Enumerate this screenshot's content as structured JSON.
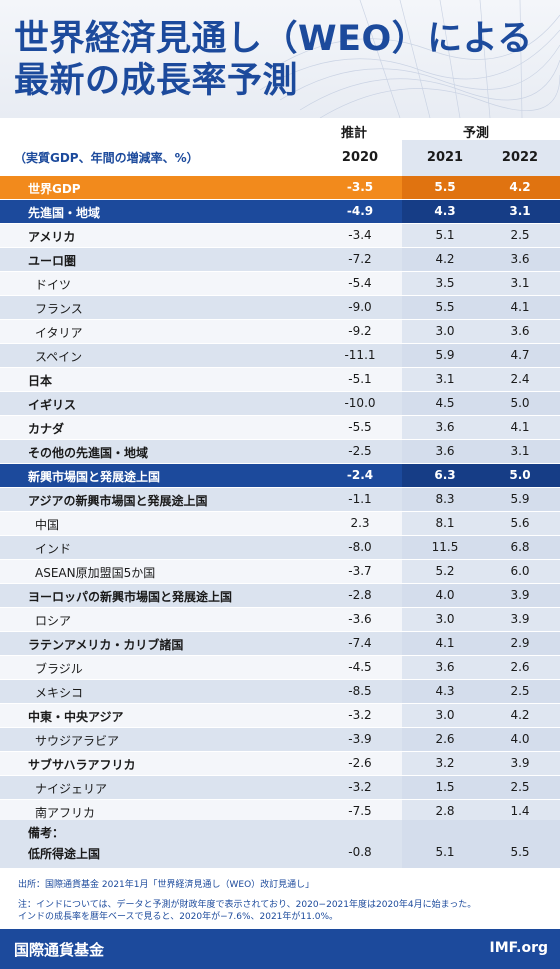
{
  "title_line1": "世界経済見通し（WEO）による",
  "title_line2": "最新の成長率予測",
  "header_estimate": "推計",
  "header_forecast": "予測",
  "subtitle": "（実質GDP、年間の増減率、%）",
  "years": [
    "2020",
    "2021",
    "2022"
  ],
  "chart_data": {
    "type": "table",
    "columns": [
      "2020",
      "2021",
      "2022"
    ],
    "rows": [
      {
        "name": "世界GDP",
        "values": [
          "-3.5",
          "5.5",
          "4.2"
        ],
        "style": "world"
      },
      {
        "name": "先進国・地域",
        "values": [
          "-4.9",
          "4.3",
          "3.1"
        ],
        "style": "group"
      },
      {
        "name": "アメリカ",
        "values": [
          "-3.4",
          "5.1",
          "2.5"
        ],
        "style": "bold"
      },
      {
        "name": "ユーロ圏",
        "values": [
          "-7.2",
          "4.2",
          "3.6"
        ],
        "style": "bold"
      },
      {
        "name": "ドイツ",
        "values": [
          "-5.4",
          "3.5",
          "3.1"
        ],
        "style": "indent"
      },
      {
        "name": "フランス",
        "values": [
          "-9.0",
          "5.5",
          "4.1"
        ],
        "style": "indent"
      },
      {
        "name": "イタリア",
        "values": [
          "-9.2",
          "3.0",
          "3.6"
        ],
        "style": "indent"
      },
      {
        "name": "スペイン",
        "values": [
          "-11.1",
          "5.9",
          "4.7"
        ],
        "style": "indent"
      },
      {
        "name": "日本",
        "values": [
          "-5.1",
          "3.1",
          "2.4"
        ],
        "style": "bold"
      },
      {
        "name": "イギリス",
        "values": [
          "-10.0",
          "4.5",
          "5.0"
        ],
        "style": "bold"
      },
      {
        "name": "カナダ",
        "values": [
          "-5.5",
          "3.6",
          "4.1"
        ],
        "style": "bold"
      },
      {
        "name": "その他の先進国・地域",
        "values": [
          "-2.5",
          "3.6",
          "3.1"
        ],
        "style": "bold"
      },
      {
        "name": "新興市場国と発展途上国",
        "values": [
          "-2.4",
          "6.3",
          "5.0"
        ],
        "style": "group"
      },
      {
        "name": "アジアの新興市場国と発展途上国",
        "values": [
          "-1.1",
          "8.3",
          "5.9"
        ],
        "style": "bold"
      },
      {
        "name": "中国",
        "values": [
          "2.3",
          "8.1",
          "5.6"
        ],
        "style": "indent"
      },
      {
        "name": "インド",
        "values": [
          "-8.0",
          "11.5",
          "6.8"
        ],
        "style": "indent"
      },
      {
        "name": "ASEAN原加盟国5か国",
        "values": [
          "-3.7",
          "5.2",
          "6.0"
        ],
        "style": "indent"
      },
      {
        "name": "ヨーロッパの新興市場国と発展途上国",
        "values": [
          "-2.8",
          "4.0",
          "3.9"
        ],
        "style": "bold"
      },
      {
        "name": "ロシア",
        "values": [
          "-3.6",
          "3.0",
          "3.9"
        ],
        "style": "indent"
      },
      {
        "name": "ラテンアメリカ・カリブ諸国",
        "values": [
          "-7.4",
          "4.1",
          "2.9"
        ],
        "style": "bold"
      },
      {
        "name": "ブラジル",
        "values": [
          "-4.5",
          "3.6",
          "2.6"
        ],
        "style": "indent"
      },
      {
        "name": "メキシコ",
        "values": [
          "-8.5",
          "4.3",
          "2.5"
        ],
        "style": "indent"
      },
      {
        "name": "中東・中央アジア",
        "values": [
          "-3.2",
          "3.0",
          "4.2"
        ],
        "style": "bold"
      },
      {
        "name": "サウジアラビア",
        "values": [
          "-3.9",
          "2.6",
          "4.0"
        ],
        "style": "indent"
      },
      {
        "name": "サブサハラアフリカ",
        "values": [
          "-2.6",
          "3.2",
          "3.9"
        ],
        "style": "bold"
      },
      {
        "name": "ナイジェリア",
        "values": [
          "-3.2",
          "1.5",
          "2.5"
        ],
        "style": "indent"
      },
      {
        "name": "南アフリカ",
        "values": [
          "-7.5",
          "2.8",
          "1.4"
        ],
        "style": "indent"
      }
    ],
    "memo": {
      "label": "備考：",
      "name": "低所得途上国",
      "values": [
        "-0.8",
        "5.1",
        "5.5"
      ]
    }
  },
  "source": "出所：国際通貨基金 2021年1月「世界経済見通し（WEO）改訂見通し」",
  "note_line1": "注：インドについては、データと予測が財政年度で表示されており、2020−2021年度は2020年4月に始まった。",
  "note_line2": "インドの成長率を暦年ベースで見ると、2020年が−7.6%、2021年が11.0%。",
  "footer_org": "国際通貨基金",
  "footer_site": "IMF.org",
  "colors": {
    "brand_blue": "#1c4a9c",
    "world_orange": "#f28a1c"
  }
}
